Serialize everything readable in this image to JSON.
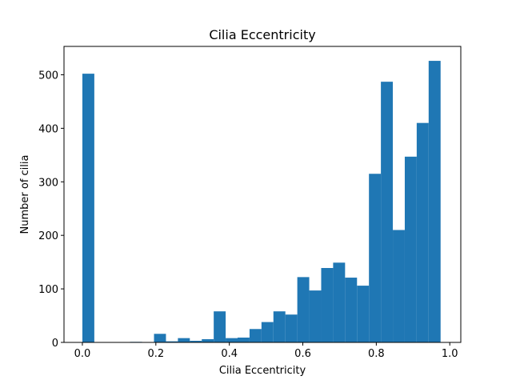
{
  "chart_data": {
    "type": "bar",
    "title": "Cilia Eccentricity",
    "xlabel": "Cilia Eccentricity",
    "ylabel": "Number of cilia",
    "xlim": [
      -0.05,
      1.03
    ],
    "ylim": [
      0,
      553
    ],
    "xticks": [
      0.0,
      0.2,
      0.4,
      0.6,
      0.8,
      1.0
    ],
    "xtick_labels": [
      "0.0",
      "0.2",
      "0.4",
      "0.6",
      "0.8",
      "1.0"
    ],
    "yticks": [
      0,
      100,
      200,
      300,
      400,
      500
    ],
    "ytick_labels": [
      "0",
      "100",
      "200",
      "300",
      "400",
      "500"
    ],
    "bar_color": "#1f77b4",
    "grid": false,
    "bin_width": 0.0325,
    "bins_start": [
      0.0,
      0.0325,
      0.065,
      0.0975,
      0.13,
      0.1625,
      0.195,
      0.2275,
      0.26,
      0.2925,
      0.325,
      0.3575,
      0.39,
      0.4225,
      0.455,
      0.4875,
      0.52,
      0.5525,
      0.585,
      0.6175,
      0.65,
      0.6825,
      0.715,
      0.7475,
      0.78,
      0.8125,
      0.845,
      0.8775,
      0.91,
      0.9425
    ],
    "values": [
      502,
      0,
      0,
      0,
      1,
      0,
      16,
      2,
      8,
      3,
      6,
      58,
      8,
      9,
      25,
      38,
      58,
      52,
      122,
      97,
      139,
      149,
      121,
      106,
      315,
      487,
      210,
      347,
      410,
      526
    ]
  }
}
